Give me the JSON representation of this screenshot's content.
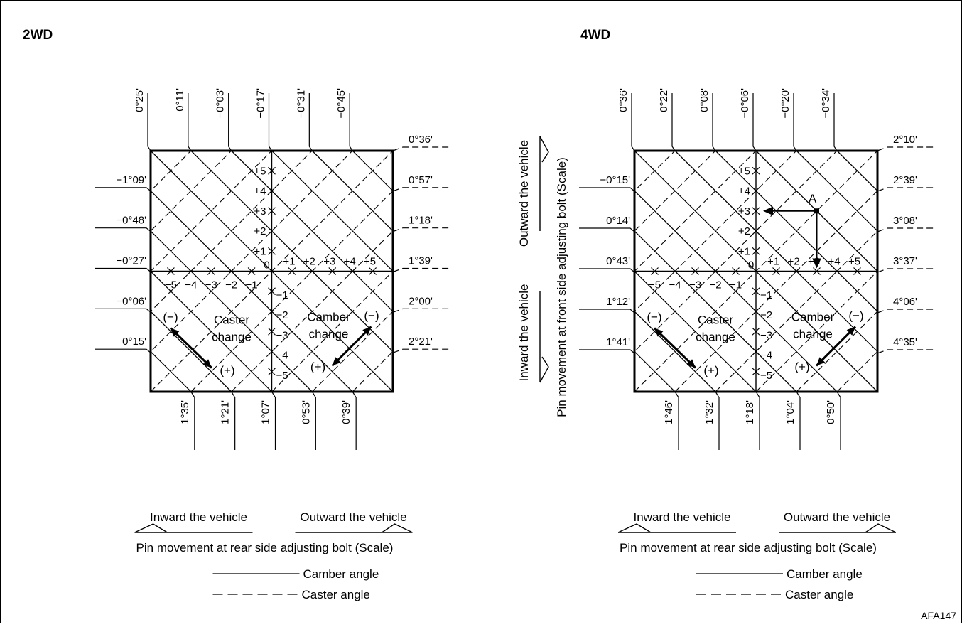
{
  "figure": {
    "border_color": "#000000",
    "code": "AFA147",
    "panels": [
      {
        "id": "2wd",
        "title": "2WD",
        "top_angles": [
          "0°25'",
          "0°11'",
          "−0°03'",
          "−0°17'",
          "−0°31'",
          "−0°45'"
        ],
        "bottom_angles": [
          "1°35'",
          "1°21'",
          "1°07'",
          "0°53'",
          "0°39'"
        ],
        "left_angles": [
          "−1°09'",
          "−0°48'",
          "−0°27'",
          "−0°06'",
          "0°15'"
        ],
        "right_angles": [
          "0°36'",
          "0°57'",
          "1°18'",
          "1°39'",
          "2°00'",
          "2°21'"
        ],
        "x_scale": [
          "−5",
          "−4",
          "−3",
          "−2",
          "−1",
          "0",
          "+1",
          "+2",
          "+3",
          "+4",
          "+5"
        ],
        "y_scale": [
          "+5",
          "+4",
          "+3",
          "+2",
          "+1",
          "−1",
          "−2",
          "−3",
          "−4",
          "−5"
        ],
        "caster_label": [
          "Caster",
          "change"
        ],
        "camber_label": [
          "Camber",
          "change"
        ],
        "minus": "(−)",
        "plus": "(+)",
        "point_label": "",
        "legend": {
          "inward": "Inward the vehicle",
          "outward": "Outward the vehicle",
          "pin_movement": "Pin movement at rear side adjusting bolt (Scale)",
          "camber": "Camber angle",
          "caster": "Caster angle"
        }
      },
      {
        "id": "4wd",
        "title": "4WD",
        "top_angles": [
          "0°36'",
          "0°22'",
          "0°08'",
          "−0°06'",
          "−0°20'",
          "−0°34'"
        ],
        "bottom_angles": [
          "1°46'",
          "1°32'",
          "1°18'",
          "1°04'",
          "0°50'"
        ],
        "left_angles": [
          "−0°15'",
          "0°14'",
          "0°43'",
          "1°12'",
          "1°41'"
        ],
        "right_angles": [
          "2°10'",
          "2°39'",
          "3°08'",
          "3°37'",
          "4°06'",
          "4°35'"
        ],
        "x_scale": [
          "−5",
          "−4",
          "−3",
          "−2",
          "−1",
          "0",
          "+1",
          "+2",
          "+3",
          "+4",
          "+5"
        ],
        "y_scale": [
          "+5",
          "+4",
          "+3",
          "+2",
          "+1",
          "−1",
          "−2",
          "−3",
          "−4",
          "−5"
        ],
        "caster_label": [
          "Caster",
          "change"
        ],
        "camber_label": [
          "Camber",
          "change"
        ],
        "minus": "(−)",
        "plus": "(+)",
        "point_label": "A",
        "point": {
          "x": 3,
          "y": 3
        },
        "vertical_axis": {
          "outward": "Outward the vehicle",
          "inward": "Inward the vehicle",
          "pin_movement": "Pin movement at front side adjusting bolt (Scale)"
        },
        "legend": {
          "inward": "Inward the vehicle",
          "outward": "Outward the vehicle",
          "pin_movement": "Pin movement at rear side adjusting bolt (Scale)",
          "camber": "Camber angle",
          "caster": "Caster angle"
        }
      }
    ]
  }
}
